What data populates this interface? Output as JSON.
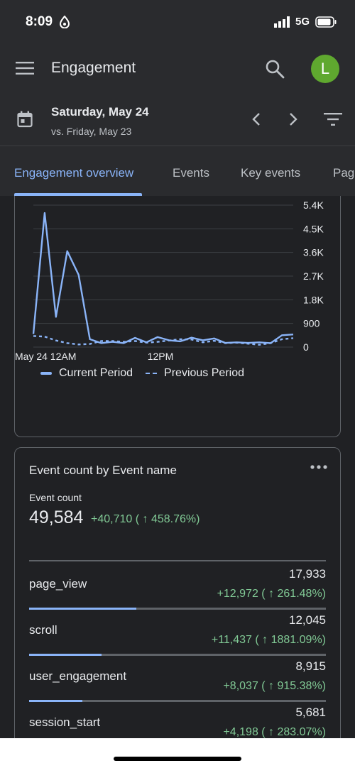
{
  "status_bar": {
    "time": "8:09",
    "network": "5G"
  },
  "header": {
    "title": "Engagement",
    "avatar_letter": "L",
    "avatar_color": "#5fa82f"
  },
  "date_row": {
    "date": "Saturday, May 24",
    "compare": "vs. Friday, May 23"
  },
  "tabs": [
    {
      "label": "Engagement overview",
      "active": true
    },
    {
      "label": "Events",
      "active": false
    },
    {
      "label": "Key events",
      "active": false
    },
    {
      "label": "Pag",
      "active": false
    }
  ],
  "chart_data": {
    "type": "line",
    "x_tick_labels": [
      "May 24 12AM",
      "12PM"
    ],
    "y_tick_labels": [
      "5.4K",
      "4.5K",
      "3.6K",
      "2.7K",
      "1.8K",
      "900",
      "0"
    ],
    "ylim": [
      0,
      5400
    ],
    "grid": true,
    "legend_position": "bottom",
    "x": [
      0,
      1,
      2,
      3,
      4,
      5,
      6,
      7,
      8,
      9,
      10,
      11,
      12,
      13,
      14,
      15,
      16,
      17,
      18,
      19,
      20,
      21,
      22,
      23
    ],
    "series": [
      {
        "name": "Current Period",
        "style": "solid",
        "color": "#8ab4f8",
        "values": [
          500,
          5100,
          1150,
          3650,
          2750,
          300,
          150,
          200,
          150,
          350,
          180,
          380,
          260,
          220,
          360,
          260,
          330,
          160,
          180,
          160,
          180,
          150,
          450,
          480
        ]
      },
      {
        "name": "Previous Period",
        "style": "dashed",
        "color": "#8ab4f8",
        "values": [
          420,
          400,
          250,
          150,
          100,
          120,
          230,
          230,
          200,
          230,
          170,
          200,
          250,
          300,
          290,
          180,
          240,
          150,
          170,
          130,
          90,
          150,
          300,
          340
        ]
      }
    ]
  },
  "event_card": {
    "title": "Event count by Event name",
    "metric_label": "Event count",
    "metric_value": "49,584",
    "metric_delta": "+40,710 ( ↑ 458.76%)",
    "rows": [
      {
        "name": "page_view",
        "value": "17,933",
        "delta": "+12,972 ( ↑ 261.48%)",
        "share": 0.362
      },
      {
        "name": "scroll",
        "value": "12,045",
        "delta": "+11,437 ( ↑ 1881.09%)",
        "share": 0.243
      },
      {
        "name": "user_engagement",
        "value": "8,915",
        "delta": "+8,037 ( ↑ 915.38%)",
        "share": 0.18
      },
      {
        "name": "session_start",
        "value": "5,681",
        "delta": "+4,198 ( ↑ 283.07%)",
        "share": 0.115
      }
    ]
  }
}
